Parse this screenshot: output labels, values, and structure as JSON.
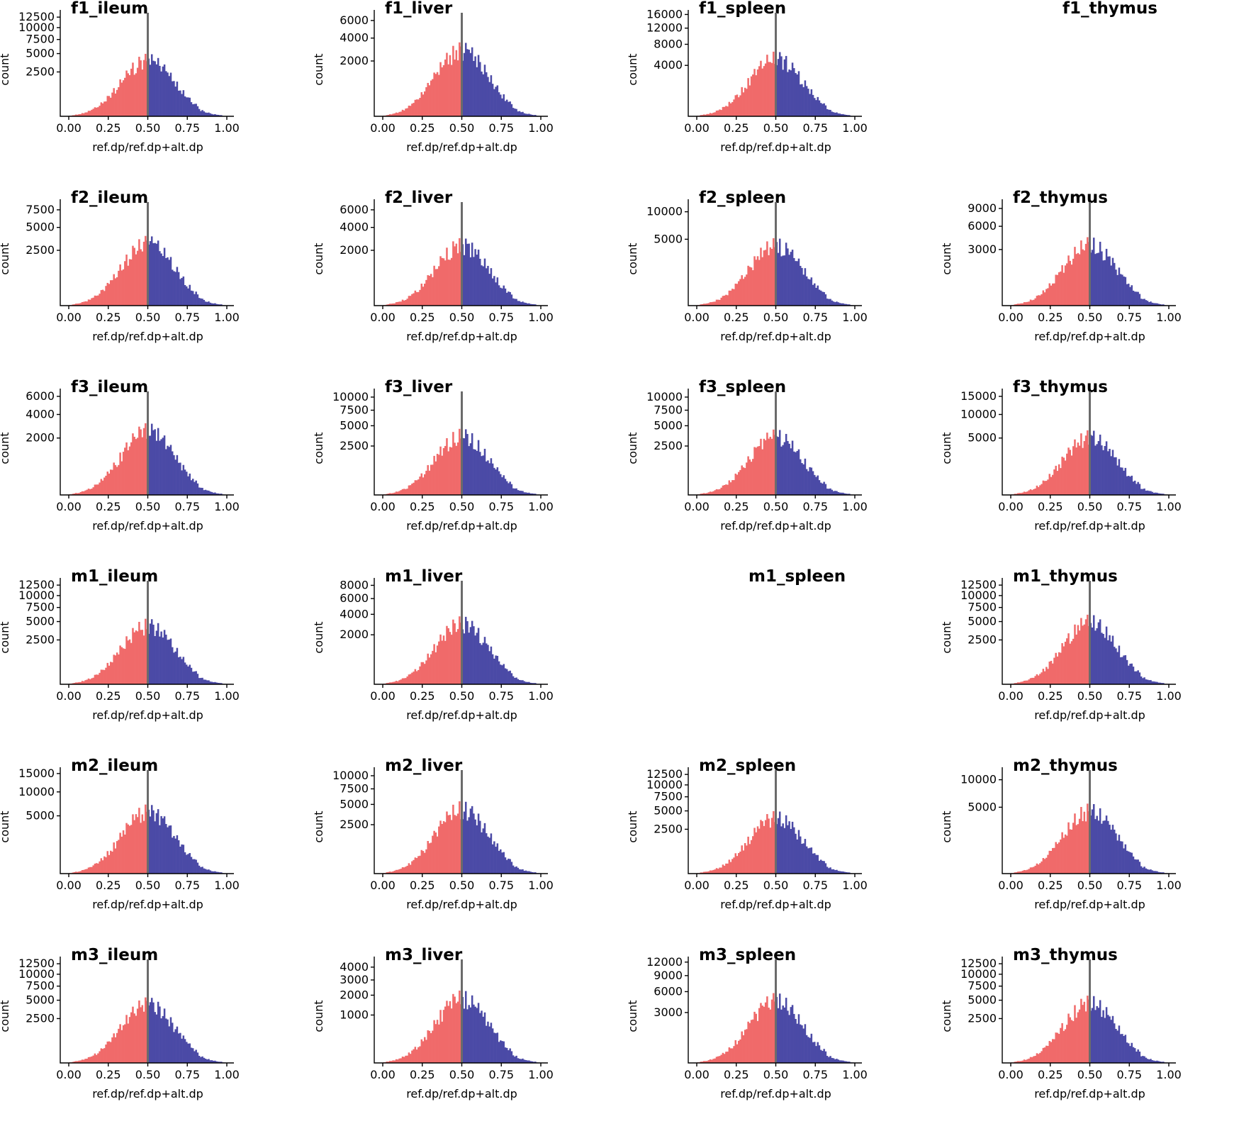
{
  "chart_data": [
    {
      "type": "bar",
      "title": "f1_ileum",
      "empty": false,
      "xlabel": "ref.dp/ref.dp+alt.dp",
      "ylabel": "count",
      "x_ticks": [
        "0.00",
        "0.25",
        "0.50",
        "0.75",
        "1.00"
      ],
      "y_ticks": [
        "2500",
        "5000",
        "7500",
        "10000",
        "12500"
      ],
      "y_tick_values": [
        2500,
        5000,
        7500,
        10000,
        12500
      ],
      "y_max": 14000,
      "peak": 5000,
      "threshold": 0.5,
      "colors": {
        "below": "#f06a6a",
        "above": "#4b4aa6",
        "line": "#6b6b6b"
      },
      "seed": 11
    },
    {
      "type": "bar",
      "title": "f1_liver",
      "empty": false,
      "xlabel": "ref.dp/ref.dp+alt.dp",
      "ylabel": "count",
      "x_ticks": [
        "0.00",
        "0.25",
        "0.50",
        "0.75",
        "1.00"
      ],
      "y_ticks": [
        "2000",
        "4000",
        "6000"
      ],
      "y_tick_values": [
        2000,
        4000,
        6000
      ],
      "y_max": 7200,
      "peak": 3600,
      "threshold": 0.5,
      "colors": {
        "below": "#f06a6a",
        "above": "#4b4aa6",
        "line": "#6b6b6b"
      },
      "seed": 12
    },
    {
      "type": "bar",
      "title": "f1_spleen",
      "empty": false,
      "xlabel": "ref.dp/ref.dp+alt.dp",
      "ylabel": "count",
      "x_ticks": [
        "0.00",
        "0.25",
        "0.50",
        "0.75",
        "1.00"
      ],
      "y_ticks": [
        "4000",
        "8000",
        "12000",
        "16000"
      ],
      "y_tick_values": [
        4000,
        8000,
        12000,
        16000
      ],
      "y_max": 17000,
      "peak": 6500,
      "threshold": 0.5,
      "colors": {
        "below": "#f06a6a",
        "above": "#4b4aa6",
        "line": "#6b6b6b"
      },
      "seed": 13
    },
    {
      "type": "bar",
      "title": "f1_thymus",
      "empty": true,
      "xlabel": "",
      "ylabel": "",
      "x_ticks": [],
      "y_ticks": [],
      "y_tick_values": [],
      "y_max": 1,
      "peak": 0,
      "threshold": 0.5,
      "colors": {
        "below": "#f06a6a",
        "above": "#4b4aa6",
        "line": "#6b6b6b"
      },
      "seed": 14
    },
    {
      "type": "bar",
      "title": "f2_ileum",
      "empty": false,
      "xlabel": "ref.dp/ref.dp+alt.dp",
      "ylabel": "count",
      "x_ticks": [
        "0.00",
        "0.25",
        "0.50",
        "0.75",
        "1.00"
      ],
      "y_ticks": [
        "2500",
        "5000",
        "7500"
      ],
      "y_tick_values": [
        2500,
        5000,
        7500
      ],
      "y_max": 9000,
      "peak": 4000,
      "threshold": 0.5,
      "colors": {
        "below": "#f06a6a",
        "above": "#4b4aa6",
        "line": "#6b6b6b"
      },
      "seed": 21
    },
    {
      "type": "bar",
      "title": "f2_liver",
      "empty": false,
      "xlabel": "ref.dp/ref.dp+alt.dp",
      "ylabel": "count",
      "x_ticks": [
        "0.00",
        "0.25",
        "0.50",
        "0.75",
        "1.00"
      ],
      "y_ticks": [
        "2000",
        "4000",
        "6000"
      ],
      "y_tick_values": [
        2000,
        4000,
        6000
      ],
      "y_max": 7200,
      "peak": 3000,
      "threshold": 0.5,
      "colors": {
        "below": "#f06a6a",
        "above": "#4b4aa6",
        "line": "#6b6b6b"
      },
      "seed": 22
    },
    {
      "type": "bar",
      "title": "f2_spleen",
      "empty": false,
      "xlabel": "ref.dp/ref.dp+alt.dp",
      "ylabel": "count",
      "x_ticks": [
        "0.00",
        "0.25",
        "0.50",
        "0.75",
        "1.00"
      ],
      "y_ticks": [
        "5000",
        "10000"
      ],
      "y_tick_values": [
        5000,
        10000
      ],
      "y_max": 12500,
      "peak": 5200,
      "threshold": 0.5,
      "colors": {
        "below": "#f06a6a",
        "above": "#4b4aa6",
        "line": "#6b6b6b"
      },
      "seed": 23
    },
    {
      "type": "bar",
      "title": "f2_thymus",
      "empty": false,
      "xlabel": "ref.dp/ref.dp+alt.dp",
      "ylabel": "count",
      "x_ticks": [
        "0.00",
        "0.25",
        "0.50",
        "0.75",
        "1.00"
      ],
      "y_ticks": [
        "3000",
        "6000",
        "9000"
      ],
      "y_tick_values": [
        3000,
        6000,
        9000
      ],
      "y_max": 10500,
      "peak": 4500,
      "threshold": 0.5,
      "colors": {
        "below": "#f06a6a",
        "above": "#4b4aa6",
        "line": "#6b6b6b"
      },
      "seed": 24
    },
    {
      "type": "bar",
      "title": "f3_ileum",
      "empty": false,
      "xlabel": "ref.dp/ref.dp+alt.dp",
      "ylabel": "count",
      "x_ticks": [
        "0.00",
        "0.25",
        "0.50",
        "0.75",
        "1.00"
      ],
      "y_ticks": [
        "2000",
        "4000",
        "6000"
      ],
      "y_tick_values": [
        2000,
        4000,
        6000
      ],
      "y_max": 6800,
      "peak": 3200,
      "threshold": 0.5,
      "colors": {
        "below": "#f06a6a",
        "above": "#4b4aa6",
        "line": "#6b6b6b"
      },
      "seed": 31
    },
    {
      "type": "bar",
      "title": "f3_liver",
      "empty": false,
      "xlabel": "ref.dp/ref.dp+alt.dp",
      "ylabel": "count",
      "x_ticks": [
        "0.00",
        "0.25",
        "0.50",
        "0.75",
        "1.00"
      ],
      "y_ticks": [
        "2500",
        "5000",
        "7500",
        "10000"
      ],
      "y_tick_values": [
        2500,
        5000,
        7500,
        10000
      ],
      "y_max": 11500,
      "peak": 4600,
      "threshold": 0.5,
      "colors": {
        "below": "#f06a6a",
        "above": "#4b4aa6",
        "line": "#6b6b6b"
      },
      "seed": 32
    },
    {
      "type": "bar",
      "title": "f3_spleen",
      "empty": false,
      "xlabel": "ref.dp/ref.dp+alt.dp",
      "ylabel": "count",
      "x_ticks": [
        "0.00",
        "0.25",
        "0.50",
        "0.75",
        "1.00"
      ],
      "y_ticks": [
        "2500",
        "5000",
        "7500",
        "10000"
      ],
      "y_tick_values": [
        2500,
        5000,
        7500,
        10000
      ],
      "y_max": 11500,
      "peak": 4500,
      "threshold": 0.5,
      "colors": {
        "below": "#f06a6a",
        "above": "#4b4aa6",
        "line": "#6b6b6b"
      },
      "seed": 33
    },
    {
      "type": "bar",
      "title": "f3_thymus",
      "empty": false,
      "xlabel": "ref.dp/ref.dp+alt.dp",
      "ylabel": "count",
      "x_ticks": [
        "0.00",
        "0.25",
        "0.50",
        "0.75",
        "1.00"
      ],
      "y_ticks": [
        "5000",
        "10000",
        "15000"
      ],
      "y_tick_values": [
        5000,
        10000,
        15000
      ],
      "y_max": 17000,
      "peak": 6500,
      "threshold": 0.5,
      "colors": {
        "below": "#f06a6a",
        "above": "#4b4aa6",
        "line": "#6b6b6b"
      },
      "seed": 34
    },
    {
      "type": "bar",
      "title": "m1_ileum",
      "empty": false,
      "xlabel": "ref.dp/ref.dp+alt.dp",
      "ylabel": "count",
      "x_ticks": [
        "0.00",
        "0.25",
        "0.50",
        "0.75",
        "1.00"
      ],
      "y_ticks": [
        "2500",
        "5000",
        "7500",
        "10000",
        "12500"
      ],
      "y_tick_values": [
        2500,
        5000,
        7500,
        10000,
        12500
      ],
      "y_max": 14000,
      "peak": 5500,
      "threshold": 0.5,
      "colors": {
        "below": "#f06a6a",
        "above": "#4b4aa6",
        "line": "#6b6b6b"
      },
      "seed": 41
    },
    {
      "type": "bar",
      "title": "m1_liver",
      "empty": false,
      "xlabel": "ref.dp/ref.dp+alt.dp",
      "ylabel": "count",
      "x_ticks": [
        "0.00",
        "0.25",
        "0.50",
        "0.75",
        "1.00"
      ],
      "y_ticks": [
        "2000",
        "4000",
        "6000",
        "8000"
      ],
      "y_tick_values": [
        2000,
        4000,
        6000,
        8000
      ],
      "y_max": 9000,
      "peak": 3800,
      "threshold": 0.5,
      "colors": {
        "below": "#f06a6a",
        "above": "#4b4aa6",
        "line": "#6b6b6b"
      },
      "seed": 42
    },
    {
      "type": "bar",
      "title": "m1_spleen",
      "empty": true,
      "xlabel": "",
      "ylabel": "",
      "x_ticks": [],
      "y_ticks": [],
      "y_tick_values": [],
      "y_max": 1,
      "peak": 0,
      "threshold": 0.5,
      "colors": {
        "below": "#f06a6a",
        "above": "#4b4aa6",
        "line": "#6b6b6b"
      },
      "seed": 43
    },
    {
      "type": "bar",
      "title": "m1_thymus",
      "empty": false,
      "xlabel": "ref.dp/ref.dp+alt.dp",
      "ylabel": "count",
      "x_ticks": [
        "0.00",
        "0.25",
        "0.50",
        "0.75",
        "1.00"
      ],
      "y_ticks": [
        "2500",
        "5000",
        "7500",
        "10000",
        "12500"
      ],
      "y_tick_values": [
        2500,
        5000,
        7500,
        10000,
        12500
      ],
      "y_max": 14000,
      "peak": 6200,
      "threshold": 0.5,
      "colors": {
        "below": "#f06a6a",
        "above": "#4b4aa6",
        "line": "#6b6b6b"
      },
      "seed": 44
    },
    {
      "type": "bar",
      "title": "m2_ileum",
      "empty": false,
      "xlabel": "ref.dp/ref.dp+alt.dp",
      "ylabel": "count",
      "x_ticks": [
        "0.00",
        "0.25",
        "0.50",
        "0.75",
        "1.00"
      ],
      "y_ticks": [
        "5000",
        "10000",
        "15000"
      ],
      "y_tick_values": [
        5000,
        10000,
        15000
      ],
      "y_max": 16500,
      "peak": 7200,
      "threshold": 0.5,
      "colors": {
        "below": "#f06a6a",
        "above": "#4b4aa6",
        "line": "#6b6b6b"
      },
      "seed": 51
    },
    {
      "type": "bar",
      "title": "m2_liver",
      "empty": false,
      "xlabel": "ref.dp/ref.dp+alt.dp",
      "ylabel": "count",
      "x_ticks": [
        "0.00",
        "0.25",
        "0.50",
        "0.75",
        "1.00"
      ],
      "y_ticks": [
        "2500",
        "5000",
        "7500",
        "10000"
      ],
      "y_tick_values": [
        2500,
        5000,
        7500,
        10000
      ],
      "y_max": 11500,
      "peak": 5500,
      "threshold": 0.5,
      "colors": {
        "below": "#f06a6a",
        "above": "#4b4aa6",
        "line": "#6b6b6b"
      },
      "seed": 52
    },
    {
      "type": "bar",
      "title": "m2_spleen",
      "empty": false,
      "xlabel": "ref.dp/ref.dp+alt.dp",
      "ylabel": "count",
      "x_ticks": [
        "0.00",
        "0.25",
        "0.50",
        "0.75",
        "1.00"
      ],
      "y_ticks": [
        "2500",
        "5000",
        "7500",
        "10000",
        "12500"
      ],
      "y_tick_values": [
        2500,
        5000,
        7500,
        10000,
        12500
      ],
      "y_max": 14000,
      "peak": 5000,
      "threshold": 0.5,
      "colors": {
        "below": "#f06a6a",
        "above": "#4b4aa6",
        "line": "#6b6b6b"
      },
      "seed": 53
    },
    {
      "type": "bar",
      "title": "m2_thymus",
      "empty": false,
      "xlabel": "ref.dp/ref.dp+alt.dp",
      "ylabel": "count",
      "x_ticks": [
        "0.00",
        "0.25",
        "0.50",
        "0.75",
        "1.00"
      ],
      "y_ticks": [
        "5000",
        "10000"
      ],
      "y_tick_values": [
        5000,
        10000
      ],
      "y_max": 12500,
      "peak": 5600,
      "threshold": 0.5,
      "colors": {
        "below": "#f06a6a",
        "above": "#4b4aa6",
        "line": "#6b6b6b"
      },
      "seed": 54
    },
    {
      "type": "bar",
      "title": "m3_ileum",
      "empty": false,
      "xlabel": "ref.dp/ref.dp+alt.dp",
      "ylabel": "count",
      "x_ticks": [
        "0.00",
        "0.25",
        "0.50",
        "0.75",
        "1.00"
      ],
      "y_ticks": [
        "2500",
        "5000",
        "7500",
        "10000",
        "12500"
      ],
      "y_tick_values": [
        2500,
        5000,
        7500,
        10000,
        12500
      ],
      "y_max": 14000,
      "peak": 5500,
      "threshold": 0.5,
      "colors": {
        "below": "#f06a6a",
        "above": "#4b4aa6",
        "line": "#6b6b6b"
      },
      "seed": 61
    },
    {
      "type": "bar",
      "title": "m3_liver",
      "empty": false,
      "xlabel": "ref.dp/ref.dp+alt.dp",
      "ylabel": "count",
      "x_ticks": [
        "0.00",
        "0.25",
        "0.50",
        "0.75",
        "1.00"
      ],
      "y_ticks": [
        "1000",
        "2000",
        "3000",
        "4000"
      ],
      "y_tick_values": [
        1000,
        2000,
        3000,
        4000
      ],
      "y_max": 4800,
      "peak": 2300,
      "threshold": 0.5,
      "colors": {
        "below": "#f06a6a",
        "above": "#4b4aa6",
        "line": "#6b6b6b"
      },
      "seed": 62
    },
    {
      "type": "bar",
      "title": "m3_spleen",
      "empty": false,
      "xlabel": "ref.dp/ref.dp+alt.dp",
      "ylabel": "count",
      "x_ticks": [
        "0.00",
        "0.25",
        "0.50",
        "0.75",
        "1.00"
      ],
      "y_ticks": [
        "3000",
        "6000",
        "9000",
        "12000"
      ],
      "y_tick_values": [
        3000,
        6000,
        9000,
        12000
      ],
      "y_max": 13000,
      "peak": 5800,
      "threshold": 0.5,
      "colors": {
        "below": "#f06a6a",
        "above": "#4b4aa6",
        "line": "#6b6b6b"
      },
      "seed": 63
    },
    {
      "type": "bar",
      "title": "m3_thymus",
      "empty": false,
      "xlabel": "ref.dp/ref.dp+alt.dp",
      "ylabel": "count",
      "x_ticks": [
        "0.00",
        "0.25",
        "0.50",
        "0.75",
        "1.00"
      ],
      "y_ticks": [
        "2500",
        "5000",
        "7500",
        "10000",
        "12500"
      ],
      "y_tick_values": [
        2500,
        5000,
        7500,
        10000,
        12500
      ],
      "y_max": 14000,
      "peak": 5800,
      "threshold": 0.5,
      "colors": {
        "below": "#f06a6a",
        "above": "#4b4aa6",
        "line": "#6b6b6b"
      },
      "seed": 64
    }
  ]
}
